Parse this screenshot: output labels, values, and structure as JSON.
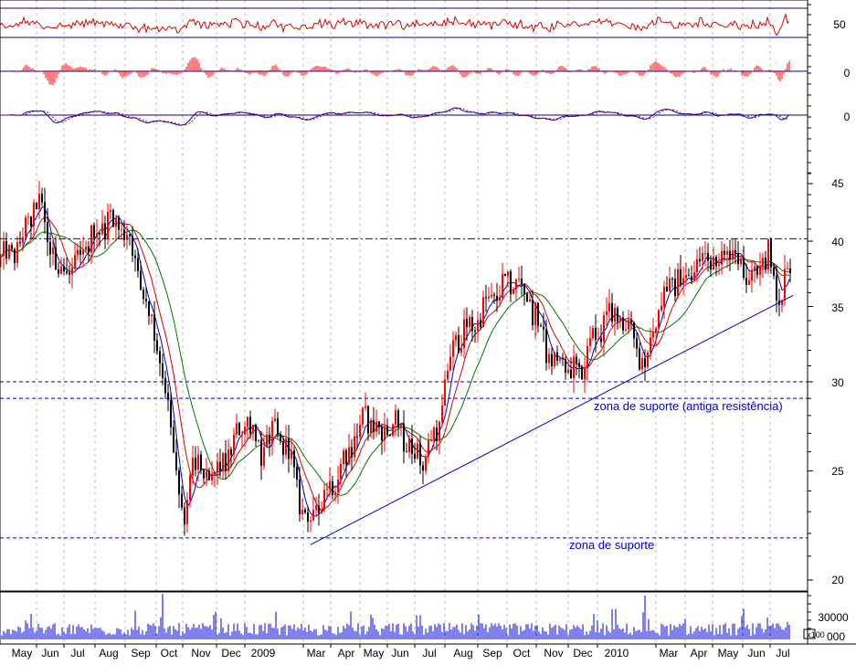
{
  "chart_data": {
    "type": "candlestick",
    "y_ticks": [
      "50",
      "0",
      "0",
      "45",
      "40",
      "35",
      "30",
      "25",
      "20",
      "30000",
      "x100",
      "000"
    ],
    "x_labels": [
      "May",
      "Jun",
      "Jul",
      "Aug",
      "Sep",
      "Oct",
      "Nov",
      "Dec",
      "2009",
      "Mar",
      "Apr",
      "May",
      "Jun",
      "Jul",
      "Aug",
      "Sep",
      "Oct",
      "Nov",
      "Dec",
      "2010",
      "Mar",
      "Apr",
      "May",
      "Jun",
      "Jul"
    ],
    "price_axis": {
      "ylim": [
        20,
        47
      ],
      "log_scale": true,
      "ticks": [
        20,
        25,
        30,
        35,
        40,
        45
      ]
    },
    "price_path": [
      [
        0,
        38.5
      ],
      [
        20,
        39.5
      ],
      [
        40,
        43.5
      ],
      [
        60,
        38
      ],
      [
        80,
        37.5
      ],
      [
        100,
        40.5
      ],
      [
        120,
        42
      ],
      [
        140,
        40.5
      ],
      [
        155,
        36
      ],
      [
        170,
        33
      ],
      [
        185,
        27.5
      ],
      [
        200,
        22
      ],
      [
        210,
        25.5
      ],
      [
        225,
        24.5
      ],
      [
        240,
        25
      ],
      [
        255,
        26.5
      ],
      [
        270,
        28
      ],
      [
        285,
        26
      ],
      [
        300,
        27
      ],
      [
        315,
        26
      ],
      [
        330,
        23
      ],
      [
        340,
        22.5
      ],
      [
        355,
        24
      ],
      [
        370,
        25
      ],
      [
        385,
        26.5
      ],
      [
        400,
        28
      ],
      [
        415,
        27
      ],
      [
        430,
        27.5
      ],
      [
        445,
        26.5
      ],
      [
        460,
        25.5
      ],
      [
        470,
        26.5
      ],
      [
        480,
        27.5
      ],
      [
        490,
        31
      ],
      [
        500,
        33
      ],
      [
        515,
        33.5
      ],
      [
        530,
        35
      ],
      [
        545,
        36
      ],
      [
        560,
        37
      ],
      [
        575,
        36
      ],
      [
        590,
        33.5
      ],
      [
        600,
        31.5
      ],
      [
        615,
        31
      ],
      [
        630,
        30.5
      ],
      [
        645,
        32
      ],
      [
        660,
        34
      ],
      [
        675,
        34.5
      ],
      [
        690,
        33
      ],
      [
        705,
        31
      ],
      [
        715,
        34
      ],
      [
        730,
        36.5
      ],
      [
        745,
        37
      ],
      [
        760,
        37.5
      ],
      [
        770,
        39
      ],
      [
        785,
        38.5
      ],
      [
        800,
        39.5
      ],
      [
        815,
        37.5
      ],
      [
        830,
        38
      ],
      [
        840,
        39
      ],
      [
        850,
        35
      ],
      [
        858,
        37.5
      ],
      [
        863,
        38
      ]
    ],
    "volume_axis": {
      "ticks": [
        30000
      ]
    },
    "reference_lines": [
      {
        "label": "resistance",
        "value": 40.2,
        "style": "dash-dot"
      },
      {
        "label": "support",
        "value": 30,
        "style": "dashed"
      },
      {
        "label": "support",
        "value": 29,
        "style": "dashed"
      },
      {
        "label": "support",
        "value": 21.8,
        "style": "dashed"
      }
    ],
    "trendline": {
      "from": [
        "Mar 2009",
        21.5
      ],
      "to": [
        "Jul 2010",
        35.8
      ]
    },
    "annotations": [
      "zona de suporte (antiga resistência)",
      "zona de suporte"
    ],
    "indicators": [
      "RSI",
      "MACD histogram",
      "MACD lines",
      "moving averages (blue, red, green)",
      "volume"
    ]
  }
}
